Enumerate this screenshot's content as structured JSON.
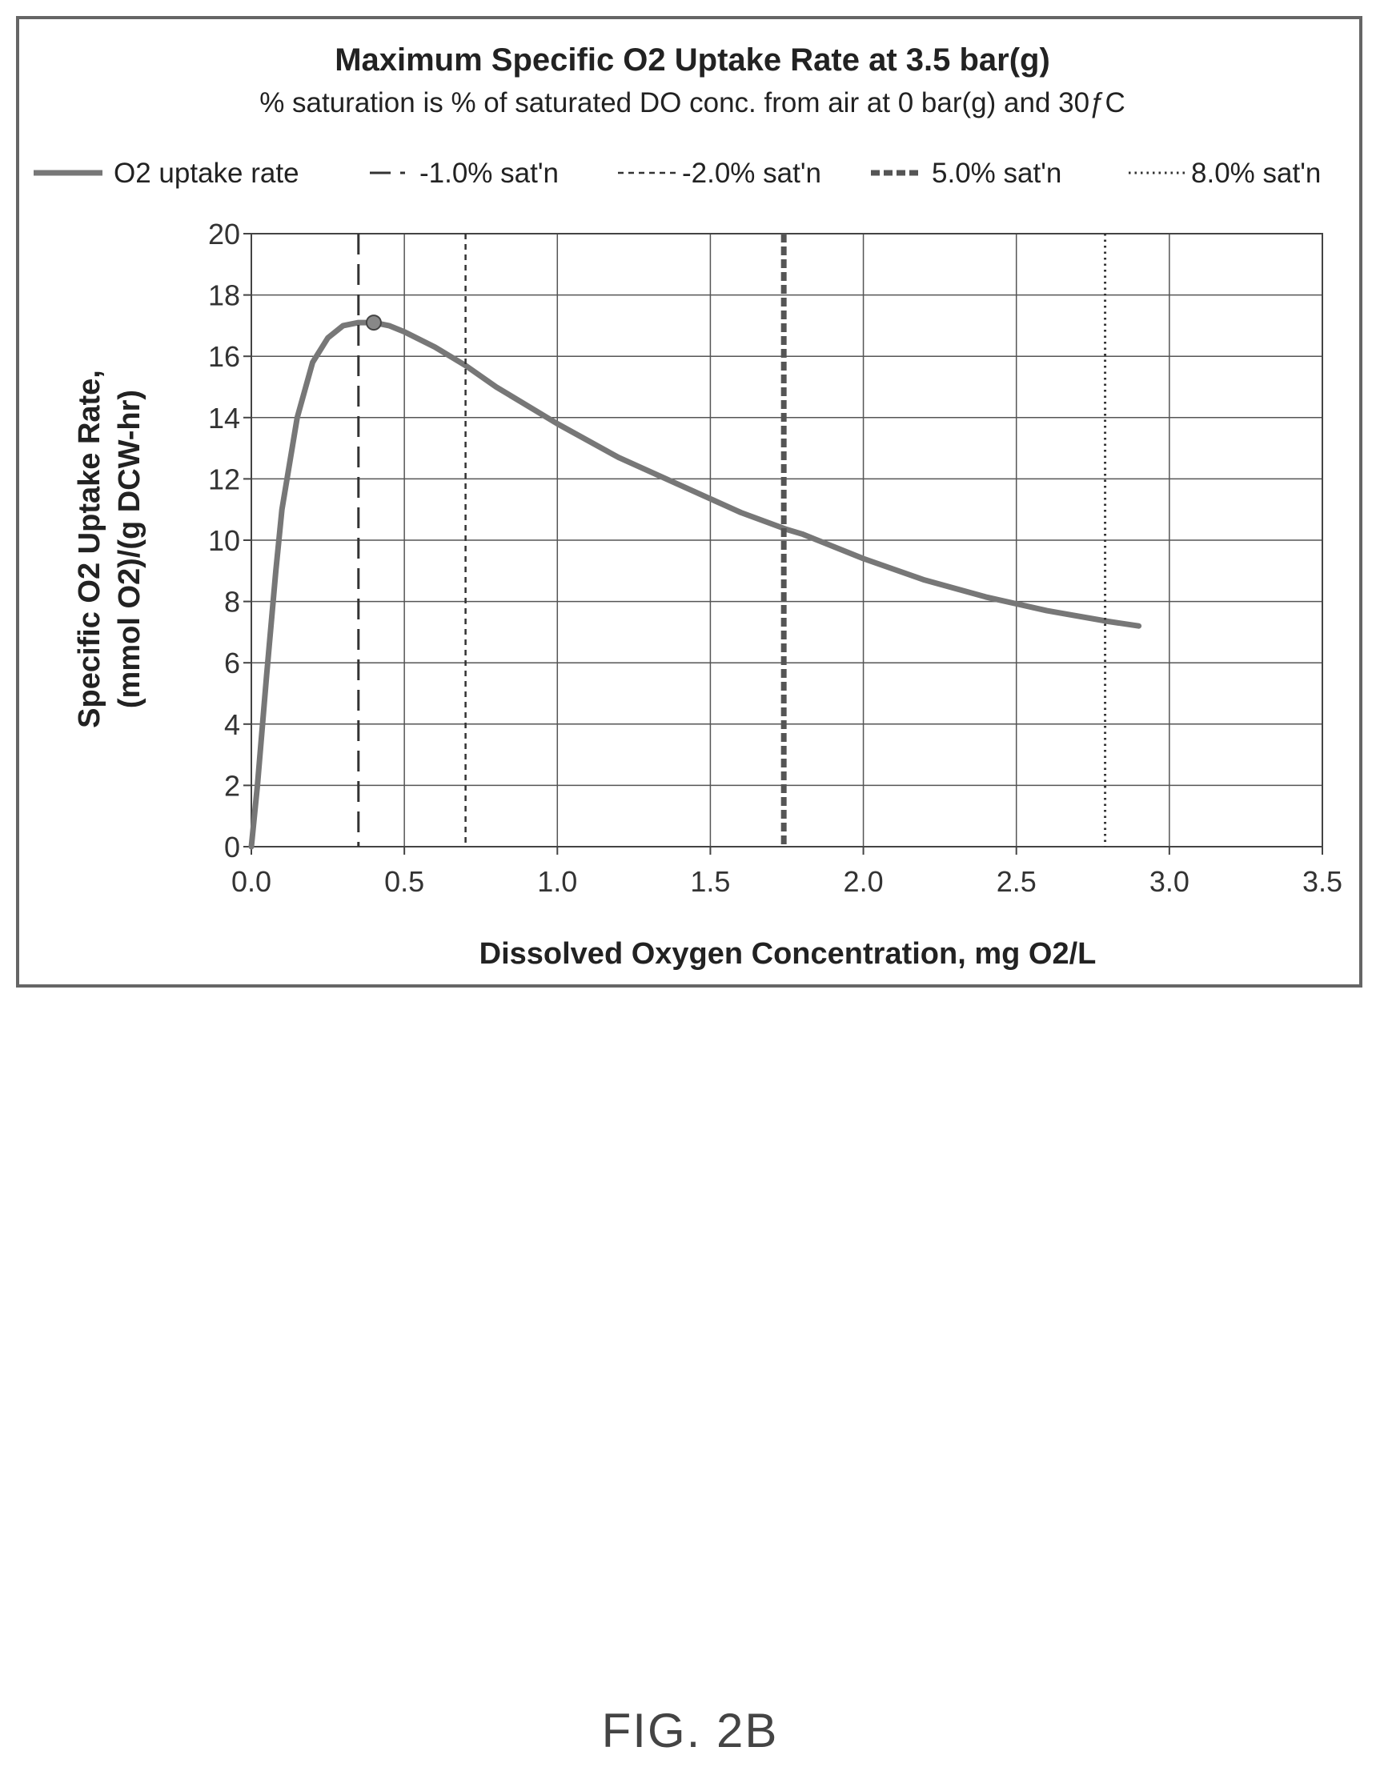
{
  "figure_label": "FIG. 2B",
  "chart_data": {
    "type": "line",
    "title": "Maximum Specific O2 Uptake Rate at 3.5 bar(g)",
    "subtitle": "% saturation is % of saturated DO conc. from air at 0 bar(g) and 30ƒC",
    "xlabel": "Dissolved Oxygen Concentration, mg O2/L",
    "ylabel_line1": "Specific O2 Uptake Rate,",
    "ylabel_line2": "(mmol O2)/(g DCW-hr)",
    "xlim": [
      0,
      3.5
    ],
    "ylim": [
      0,
      20
    ],
    "x_ticks": [
      "0.0",
      "0.5",
      "1.0",
      "1.5",
      "2.0",
      "2.5",
      "3.0",
      "3.5"
    ],
    "y_ticks": [
      "0",
      "2",
      "4",
      "6",
      "8",
      "10",
      "12",
      "14",
      "16",
      "18",
      "20"
    ],
    "grid": true,
    "legend_position": "top",
    "series": [
      {
        "name": "O2 uptake rate",
        "style": "solid-thick",
        "color": "#777777",
        "x": [
          0.0,
          0.02,
          0.05,
          0.08,
          0.1,
          0.15,
          0.2,
          0.25,
          0.3,
          0.35,
          0.4,
          0.45,
          0.5,
          0.6,
          0.7,
          0.8,
          0.9,
          1.0,
          1.2,
          1.4,
          1.6,
          1.75,
          1.8,
          2.0,
          2.2,
          2.4,
          2.6,
          2.8,
          2.9
        ],
        "y": [
          0.0,
          2.0,
          5.6,
          9.0,
          11.0,
          14.0,
          15.8,
          16.6,
          17.0,
          17.1,
          17.1,
          17.0,
          16.8,
          16.3,
          15.7,
          15.0,
          14.4,
          13.8,
          12.7,
          11.8,
          10.9,
          10.35,
          10.2,
          9.4,
          8.7,
          8.15,
          7.7,
          7.35,
          7.2
        ]
      },
      {
        "name": "-1.0% sat'n",
        "style": "long-dash",
        "x_value": 0.35
      },
      {
        "name": "-2.0% sat'n",
        "style": "short-dash",
        "x_value": 0.7
      },
      {
        "name": "5.0% sat'n",
        "style": "thick-dash",
        "x_value": 1.74
      },
      {
        "name": "8.0% sat'n",
        "style": "dotted",
        "x_value": 2.79
      }
    ],
    "marker": {
      "x": 0.4,
      "y": 17.1
    }
  }
}
